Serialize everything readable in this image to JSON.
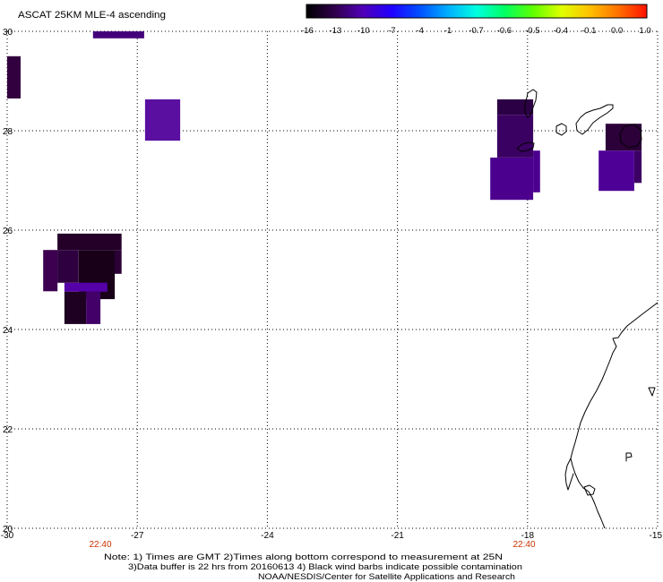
{
  "title": "ASCAT 25KM MLE-4 ascending",
  "colorbar": {
    "labels": [
      "-16",
      "-13",
      "-10",
      "-7",
      "-4",
      "-1",
      "-0.7",
      "-0.6",
      "-0.5",
      "-0.4",
      "-0.1",
      "0.0",
      "1.0"
    ],
    "colors": [
      "#000000",
      "#30004c",
      "#5000b8",
      "#2000ff",
      "#0050ff",
      "#00b0ff",
      "#00ffe0",
      "#00ff60",
      "#60ff00",
      "#e0ff00",
      "#ffc000",
      "#ff7000",
      "#ff1000"
    ]
  },
  "map": {
    "lon_range": [
      -30,
      -15
    ],
    "lat_range": [
      20,
      30
    ],
    "grid": "dotted",
    "lon_ticks": [
      {
        "value": -30,
        "label": "-30"
      },
      {
        "value": -27,
        "label": "-27"
      },
      {
        "value": -24,
        "label": "-24"
      },
      {
        "value": -21,
        "label": "-21"
      },
      {
        "value": -18,
        "label": "-18"
      },
      {
        "value": -15,
        "label": "-15"
      }
    ],
    "lat_ticks": [
      {
        "value": 30,
        "label": "30"
      },
      {
        "value": 28,
        "label": "28"
      },
      {
        "value": 26,
        "label": "26"
      },
      {
        "value": 24,
        "label": "24"
      },
      {
        "value": 22,
        "label": "22"
      },
      {
        "value": 20,
        "label": "20"
      }
    ],
    "coastline_color": "#000000",
    "cells": [
      {
        "lon": [
          -28.02,
          -26.84
        ],
        "lat": [
          29.86,
          30.0
        ],
        "color": "#44007a"
      },
      {
        "lon": [
          -30.0,
          -29.69
        ],
        "lat": [
          28.65,
          29.5
        ],
        "color": "#33003f"
      },
      {
        "lon": [
          -26.82,
          -26.01
        ],
        "lat": [
          27.8,
          28.63
        ],
        "color": "#5a0fa0"
      },
      {
        "lon": [
          -28.84,
          -27.36
        ],
        "lat": [
          25.6,
          25.93
        ],
        "color": "#240028"
      },
      {
        "lon": [
          -29.17,
          -28.84
        ],
        "lat": [
          24.77,
          25.6
        ],
        "color": "#3d0050"
      },
      {
        "lon": [
          -28.84,
          -28.35
        ],
        "lat": [
          24.94,
          25.6
        ],
        "color": "#2e0040"
      },
      {
        "lon": [
          -28.35,
          -27.52
        ],
        "lat": [
          24.61,
          25.6
        ],
        "color": "#190019"
      },
      {
        "lon": [
          -27.52,
          -27.36
        ],
        "lat": [
          25.12,
          25.6
        ],
        "color": "#2a0035"
      },
      {
        "lon": [
          -28.68,
          -27.69
        ],
        "lat": [
          24.76,
          24.94
        ],
        "color": "#5500a8"
      },
      {
        "lon": [
          -28.68,
          -28.18
        ],
        "lat": [
          24.11,
          24.76
        ],
        "color": "#1d0022"
      },
      {
        "lon": [
          -28.18,
          -27.85
        ],
        "lat": [
          24.11,
          24.76
        ],
        "color": "#420068"
      },
      {
        "lon": [
          -18.7,
          -17.87
        ],
        "lat": [
          28.32,
          28.63
        ],
        "color": "#2c0044"
      },
      {
        "lon": [
          -18.7,
          -17.87
        ],
        "lat": [
          27.46,
          28.32
        ],
        "color": "#3a0062"
      },
      {
        "lon": [
          -18.86,
          -17.87
        ],
        "lat": [
          26.61,
          27.46
        ],
        "color": "#4c008e"
      },
      {
        "lon": [
          -17.87,
          -17.71
        ],
        "lat": [
          26.76,
          27.6
        ],
        "color": "#4c008e"
      },
      {
        "lon": [
          -16.2,
          -15.37
        ],
        "lat": [
          27.6,
          28.14
        ],
        "color": "#2c0038"
      },
      {
        "lon": [
          -16.36,
          -15.54
        ],
        "lat": [
          26.79,
          27.6
        ],
        "color": "#4e0096"
      },
      {
        "lon": [
          -15.54,
          -15.37
        ],
        "lat": [
          26.95,
          27.6
        ],
        "color": "#3c0064"
      }
    ]
  },
  "time_labels": [
    "22:40",
    "22:40"
  ],
  "time_label_color": "#c83200",
  "notes": [
    "Note: 1) Times are GMT 2)Times along bottom correspond to measurement at 25N",
    "3)Data buffer is 22 hrs from 20160613 4) Black wind barbs indicate possible contamination",
    "NOAA/NESDIS/Center for Satellite Applications and Research"
  ]
}
